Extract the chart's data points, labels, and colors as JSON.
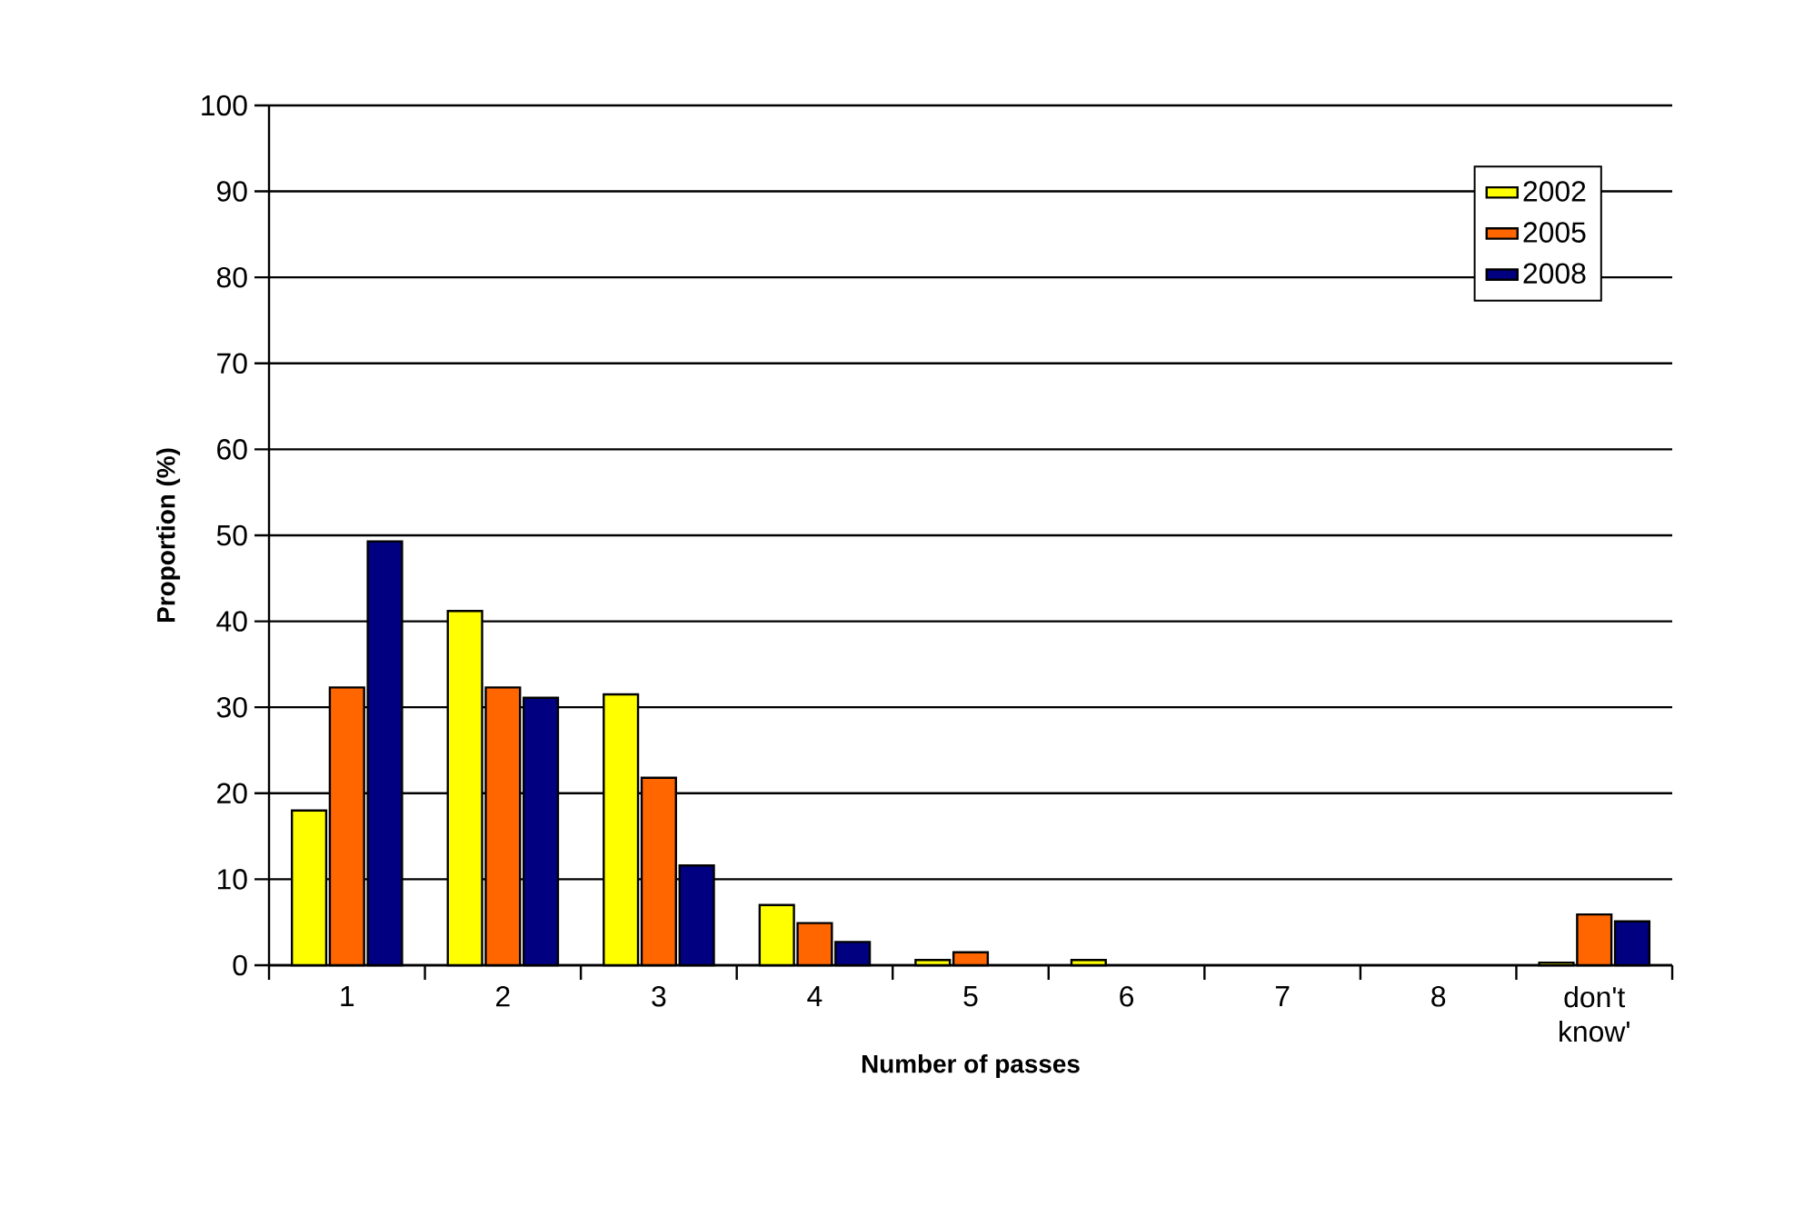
{
  "chart_data": {
    "type": "bar",
    "xlabel": "Number of passes",
    "ylabel": "Proportion  (%)",
    "categories": [
      "1",
      "2",
      "3",
      "4",
      "5",
      "6",
      "7",
      "8",
      "don't know'"
    ],
    "series": [
      {
        "name": "2002",
        "color": "#ffff00",
        "values": [
          18,
          41.2,
          31.5,
          7,
          0.6,
          0.6,
          0,
          0,
          0.3
        ]
      },
      {
        "name": "2005",
        "color": "#ff6600",
        "values": [
          32.3,
          32.3,
          21.8,
          4.9,
          1.5,
          0,
          0,
          0,
          5.9
        ]
      },
      {
        "name": "2008",
        "color": "#000080",
        "values": [
          49.3,
          31.1,
          11.6,
          2.7,
          0,
          0,
          0,
          0,
          5.1
        ]
      }
    ],
    "ylim": [
      0,
      100
    ],
    "yticks": [
      0,
      10,
      20,
      30,
      40,
      50,
      60,
      70,
      80,
      90,
      100
    ],
    "grid": "y",
    "legend": "top right"
  }
}
